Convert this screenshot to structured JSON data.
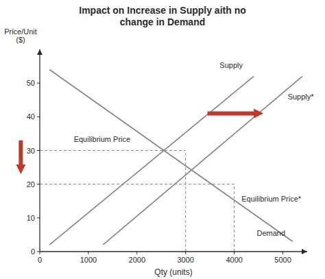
{
  "chart_data": {
    "type": "line",
    "title": "Impact on Increase in Supply aith no\nchange in Demand",
    "x_label": "Qty (units)",
    "y_label": "Price/Unit\n($)",
    "xlim": [
      0,
      5500
    ],
    "ylim": [
      0,
      60
    ],
    "xticks": [
      0,
      1000,
      2000,
      3000,
      4000,
      5000
    ],
    "yticks": [
      0,
      10,
      20,
      30,
      40,
      50
    ],
    "grid": false,
    "color": "#888888",
    "series": [
      {
        "name": "Supply",
        "x": [
          200,
          4400
        ],
        "values": [
          2,
          52
        ],
        "label": {
          "x": 3700,
          "y": 54
        }
      },
      {
        "name": "Supply*",
        "x": [
          1300,
          5400
        ],
        "values": [
          2,
          52
        ],
        "label": {
          "x": 5100,
          "y": 46
        }
      },
      {
        "name": "Demand",
        "x": [
          200,
          5200
        ],
        "values": [
          54,
          3
        ],
        "label": {
          "x": 5050,
          "y": 4
        }
      }
    ],
    "equilibria": [
      {
        "x": 3000,
        "y": 30
      },
      {
        "x": 4000,
        "y": 20
      }
    ],
    "annotations": [
      {
        "text": "Equilibrium Price",
        "x": 700,
        "y": 32
      },
      {
        "text": "Equilibrium Price*",
        "x": 4150,
        "y": 17
      }
    ],
    "arrows": [
      {
        "x": [
          3450,
          4600
        ],
        "y": [
          41,
          41
        ],
        "color": "#c0392b"
      },
      {
        "x": [
          -390,
          -390
        ],
        "y": [
          33,
          23
        ],
        "color": "#c0392b"
      }
    ]
  }
}
